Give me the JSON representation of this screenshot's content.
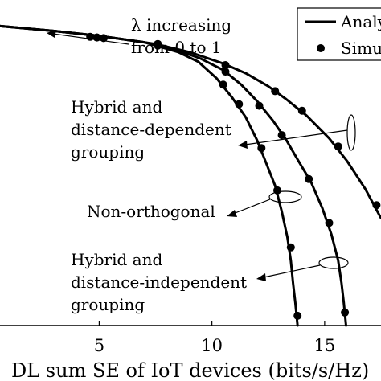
{
  "chart_data": {
    "type": "line",
    "xlabel": "DL sum SE of IoT devices (bits/s/Hz)",
    "xticks": [
      5,
      10,
      15
    ],
    "xlim": [
      0.6,
      17.5
    ],
    "ylim": [
      0,
      1
    ],
    "legend": {
      "placement": "top-right",
      "entries": [
        {
          "label": "Analytical",
          "style": "line"
        },
        {
          "label": "Simulation",
          "style": "marker"
        }
      ]
    },
    "series": [
      {
        "x": [
          0.6,
          3,
          5,
          6,
          7.5,
          9,
          10.5,
          11.5,
          12.5,
          13.3,
          14.2,
          15.2,
          16.0,
          16.8,
          17.5
        ],
        "y": [
          0.92,
          0.905,
          0.89,
          0.88,
          0.865,
          0.84,
          0.805,
          0.775,
          0.735,
          0.695,
          0.645,
          0.575,
          0.505,
          0.42,
          0.33
        ],
        "markers": [
          [
            4.6,
            0.887
          ],
          [
            5.2,
            0.883
          ],
          [
            7.6,
            0.862
          ],
          [
            10.6,
            0.8
          ],
          [
            12.8,
            0.72
          ],
          [
            14.0,
            0.66
          ],
          [
            15.6,
            0.55
          ],
          [
            17.3,
            0.37
          ]
        ]
      },
      {
        "x": [
          0.6,
          3,
          5,
          7,
          8.5,
          9.5,
          10.5,
          11.3,
          12,
          12.7,
          13.3,
          13.8,
          14.4,
          14.9,
          15.3,
          15.6,
          15.75,
          15.85,
          15.95
        ],
        "y": [
          0.92,
          0.905,
          0.89,
          0.87,
          0.845,
          0.82,
          0.785,
          0.74,
          0.69,
          0.63,
          0.57,
          0.51,
          0.44,
          0.36,
          0.28,
          0.2,
          0.13,
          0.07,
          0.0
        ],
        "markers": [
          [
            4.9,
            0.885
          ],
          [
            7.6,
            0.865
          ],
          [
            10.6,
            0.78
          ],
          [
            12.1,
            0.675
          ],
          [
            13.1,
            0.585
          ],
          [
            14.3,
            0.45
          ],
          [
            15.2,
            0.315
          ],
          [
            15.9,
            0.04
          ]
        ]
      },
      {
        "x": [
          0.6,
          3,
          5,
          7,
          8.5,
          9.4,
          10.2,
          10.9,
          11.5,
          12.0,
          12.4,
          12.8,
          13.1,
          13.35,
          13.5,
          13.6,
          13.7,
          13.8
        ],
        "y": [
          0.92,
          0.905,
          0.89,
          0.87,
          0.84,
          0.81,
          0.76,
          0.7,
          0.64,
          0.57,
          0.5,
          0.43,
          0.35,
          0.27,
          0.2,
          0.13,
          0.07,
          0.0
        ],
        "markers": [
          [
            4.9,
            0.885
          ],
          [
            7.6,
            0.86
          ],
          [
            10.5,
            0.74
          ],
          [
            11.2,
            0.68
          ],
          [
            12.2,
            0.545
          ],
          [
            12.9,
            0.415
          ],
          [
            13.5,
            0.24
          ],
          [
            13.8,
            0.03
          ]
        ]
      }
    ],
    "annotations": [
      {
        "lines": [
          "λ increasing",
          "from 0 to 1"
        ],
        "arrow": "left"
      },
      {
        "lines": [
          "Hybrid and",
          "distance-dependent",
          "grouping"
        ],
        "arrow": "ellipse"
      },
      {
        "lines": [
          "Non-orthogonal"
        ],
        "arrow": "ellipse"
      },
      {
        "lines": [
          "Hybrid and",
          "distance-independent",
          "grouping"
        ],
        "arrow": "ellipse"
      }
    ]
  }
}
